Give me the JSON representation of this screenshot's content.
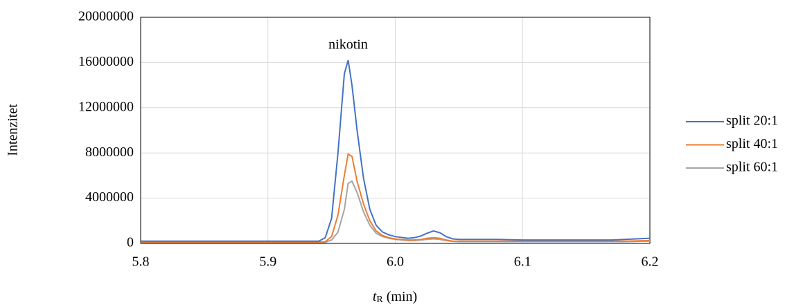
{
  "chart_data": {
    "type": "line",
    "y_label": "Intenzitet",
    "x_label": {
      "italic": "t",
      "subscript": "R",
      "text": "(min)"
    },
    "annotation": {
      "text": "nikotin",
      "x": 5.963,
      "y": 17500000
    },
    "x": [
      5.8,
      5.94,
      5.945,
      5.95,
      5.955,
      5.96,
      5.963,
      5.966,
      5.97,
      5.975,
      5.98,
      5.985,
      5.99,
      5.995,
      6.0,
      6.01,
      6.015,
      6.02,
      6.025,
      6.03,
      6.035,
      6.04,
      6.045,
      6.05,
      6.08,
      6.1,
      6.17,
      6.18,
      6.2
    ],
    "series": [
      {
        "name": "split 20:1",
        "color": "#4472c4",
        "values": [
          200000,
          200000,
          500000,
          2200000,
          8000000,
          15000000,
          16200000,
          14000000,
          10000000,
          5800000,
          3000000,
          1600000,
          1000000,
          750000,
          600000,
          450000,
          500000,
          650000,
          900000,
          1100000,
          950000,
          600000,
          400000,
          350000,
          350000,
          300000,
          300000,
          350000,
          450000
        ]
      },
      {
        "name": "split 40:1",
        "color": "#ed7d31",
        "values": [
          100000,
          100000,
          150000,
          600000,
          2500000,
          6000000,
          7900000,
          7700000,
          5500000,
          3500000,
          2000000,
          1100000,
          700000,
          500000,
          400000,
          300000,
          300000,
          350000,
          450000,
          500000,
          450000,
          300000,
          200000,
          200000,
          200000,
          200000,
          200000,
          200000,
          250000
        ]
      },
      {
        "name": "split 60:1",
        "color": "#a5a5a5",
        "values": [
          100000,
          100000,
          100000,
          300000,
          1000000,
          3000000,
          5300000,
          5500000,
          4500000,
          2800000,
          1600000,
          900000,
          600000,
          450000,
          350000,
          250000,
          250000,
          300000,
          350000,
          400000,
          350000,
          250000,
          180000,
          150000,
          150000,
          150000,
          150000,
          150000,
          200000
        ]
      }
    ],
    "xlim": [
      5.8,
      6.2
    ],
    "xticks": [
      5.8,
      5.9,
      {
        "value": 6,
        "label": "6.0"
      },
      6.1,
      6.2
    ],
    "ylim": [
      0,
      20000000
    ],
    "yticks": [
      0,
      4000000,
      8000000,
      12000000,
      16000000,
      20000000
    ],
    "grid": true,
    "legend": "right"
  }
}
